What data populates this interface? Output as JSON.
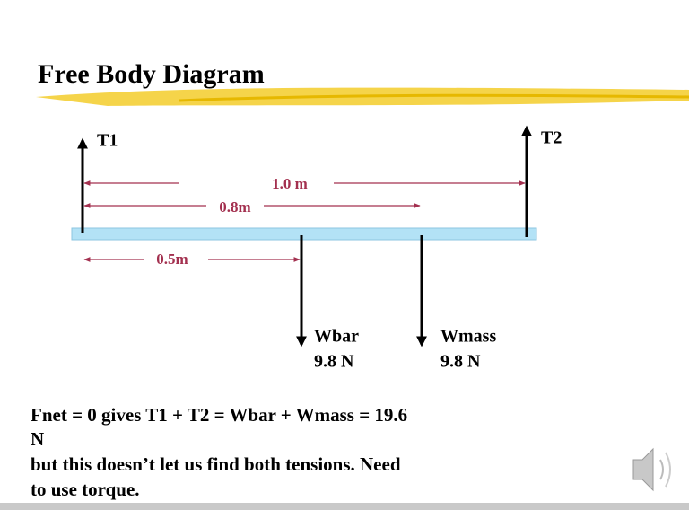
{
  "header": {
    "title": "Free Body Diagram"
  },
  "forces": {
    "t1": "T1",
    "t2": "T2",
    "wbar": {
      "name": "Wbar",
      "value": "9.8 N"
    },
    "wmass": {
      "name": "Wmass",
      "value": "9.8 N"
    }
  },
  "dimensions": {
    "full": "1.0 m",
    "mass": "0.8m",
    "bar": "0.5m"
  },
  "body": {
    "lines": [
      "Fnet = 0 gives T1 + T2 = Wbar + Wmass = 19.6",
      "N",
      "but this doesn’t let us find both tensions.  Need",
      "to use torque."
    ]
  }
}
